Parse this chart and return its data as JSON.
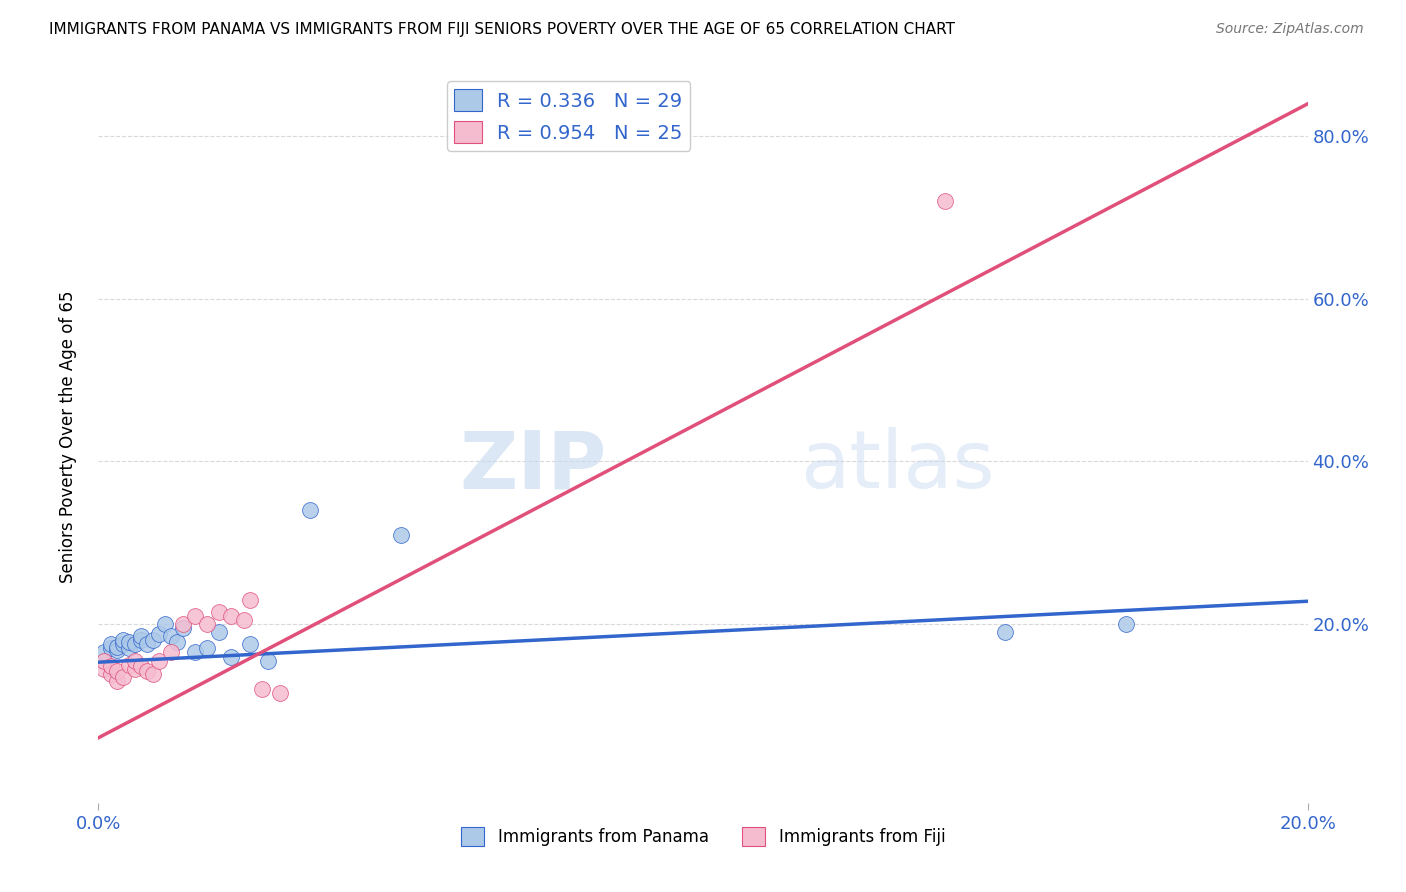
{
  "title": "IMMIGRANTS FROM PANAMA VS IMMIGRANTS FROM FIJI SENIORS POVERTY OVER THE AGE OF 65 CORRELATION CHART",
  "source": "Source: ZipAtlas.com",
  "ylabel": "Seniors Poverty Over the Age of 65",
  "legend_label_blue": "Immigrants from Panama",
  "legend_label_pink": "Immigrants from Fiji",
  "r_blue": "0.336",
  "n_blue": "29",
  "r_pink": "0.954",
  "n_pink": "25",
  "xlim": [
    0.0,
    0.2
  ],
  "ylim": [
    -0.02,
    0.88
  ],
  "xticks": [
    0.0,
    0.2
  ],
  "xtick_labels": [
    "0.0%",
    "20.0%"
  ],
  "yticks": [
    0.2,
    0.4,
    0.6,
    0.8
  ],
  "ytick_labels": [
    "20.0%",
    "40.0%",
    "60.0%",
    "80.0%"
  ],
  "background": "#ffffff",
  "watermark_part1": "ZIP",
  "watermark_part2": "atlas",
  "blue_scatter_x": [
    0.001,
    0.002,
    0.002,
    0.003,
    0.003,
    0.004,
    0.004,
    0.005,
    0.005,
    0.006,
    0.007,
    0.007,
    0.008,
    0.009,
    0.01,
    0.011,
    0.012,
    0.013,
    0.014,
    0.016,
    0.018,
    0.02,
    0.022,
    0.025,
    0.028,
    0.035,
    0.05,
    0.15,
    0.17
  ],
  "blue_scatter_y": [
    0.165,
    0.17,
    0.175,
    0.168,
    0.172,
    0.175,
    0.18,
    0.17,
    0.178,
    0.175,
    0.18,
    0.185,
    0.175,
    0.18,
    0.188,
    0.2,
    0.185,
    0.178,
    0.195,
    0.165,
    0.17,
    0.19,
    0.16,
    0.175,
    0.155,
    0.34,
    0.31,
    0.19,
    0.2
  ],
  "pink_scatter_x": [
    0.001,
    0.001,
    0.002,
    0.002,
    0.003,
    0.003,
    0.004,
    0.005,
    0.006,
    0.006,
    0.007,
    0.008,
    0.009,
    0.01,
    0.012,
    0.014,
    0.016,
    0.018,
    0.02,
    0.022,
    0.024,
    0.025,
    0.027,
    0.03,
    0.14
  ],
  "pink_scatter_y": [
    0.145,
    0.155,
    0.138,
    0.148,
    0.13,
    0.142,
    0.135,
    0.15,
    0.145,
    0.155,
    0.148,
    0.142,
    0.138,
    0.155,
    0.165,
    0.2,
    0.21,
    0.2,
    0.215,
    0.21,
    0.205,
    0.23,
    0.12,
    0.115,
    0.72
  ],
  "blue_line_x": [
    0.0,
    0.2
  ],
  "blue_line_y": [
    0.153,
    0.228
  ],
  "pink_line_x": [
    0.0,
    0.2
  ],
  "pink_line_y": [
    0.06,
    0.84
  ],
  "dot_size": 130,
  "blue_color": "#adc9e8",
  "pink_color": "#f5bcd0",
  "blue_line_color": "#3366cc",
  "pink_line_color": "#e0507a",
  "grid_color": "#d0d0d0",
  "tick_color": "#3366cc"
}
